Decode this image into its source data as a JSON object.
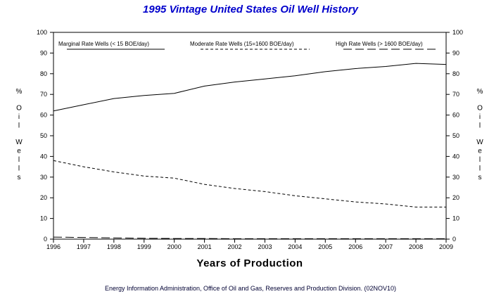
{
  "chart_data": {
    "type": "line",
    "title": "1995 Vintage United States Oil Well History",
    "xlabel": "Years of Production",
    "ylabel": "% Oil Wells",
    "ylim": [
      0,
      100
    ],
    "yticks": [
      0,
      10,
      20,
      30,
      40,
      50,
      60,
      70,
      80,
      90,
      100
    ],
    "categories": [
      "1996",
      "1997",
      "1998",
      "1999",
      "2000",
      "2001",
      "2002",
      "2003",
      "2004",
      "2005",
      "2006",
      "2007",
      "2008",
      "2009"
    ],
    "series": [
      {
        "name": "Marginal Rate Wells (< 15 BOE/day)",
        "style": "solid",
        "values": [
          62,
          65,
          68,
          69.5,
          70.5,
          74,
          76,
          77.5,
          79,
          81,
          82.5,
          83.5,
          85,
          84.5
        ]
      },
      {
        "name": "Moderate Rate Wells (15=1600 BOE/day)",
        "style": "dashed",
        "values": [
          38,
          35,
          32.5,
          30.5,
          29.5,
          26.5,
          24.5,
          23,
          21,
          19.5,
          18,
          17,
          15.5,
          15.5
        ]
      },
      {
        "name": "High Rate Wells (> 1600 BOE/day)",
        "style": "longdash",
        "values": [
          1,
          0.8,
          0.6,
          0.4,
          0.3,
          0.3,
          0.2,
          0.2,
          0.2,
          0.2,
          0.2,
          0.2,
          0.2,
          0.2
        ]
      }
    ],
    "legend_position": "top",
    "grid": false
  },
  "footer": "Energy Information Administration, Office of Oil and Gas, Reserves and Production Division. (02NOV10)"
}
